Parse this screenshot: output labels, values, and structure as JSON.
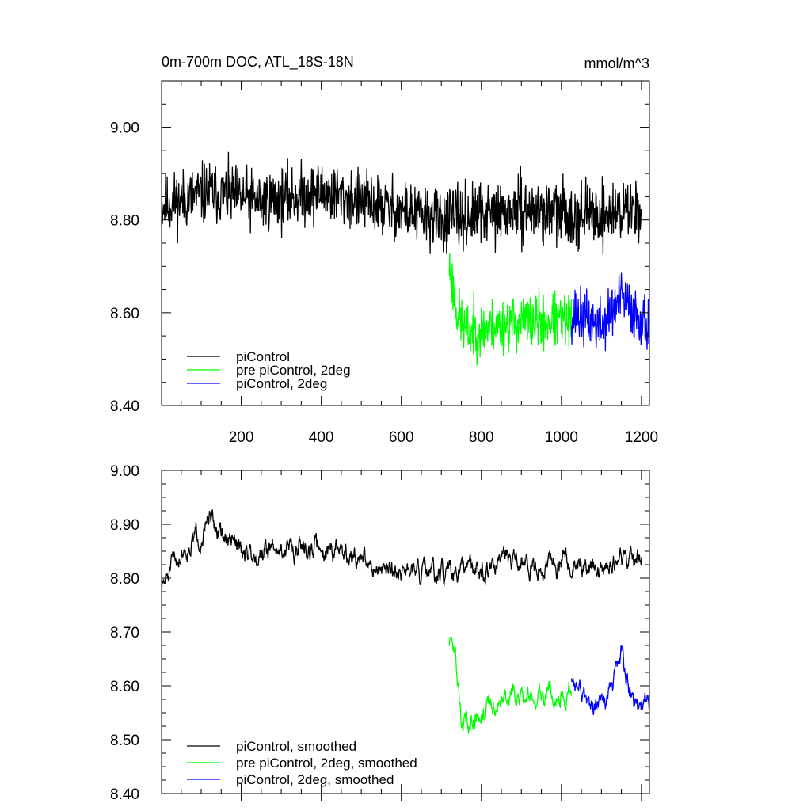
{
  "figure": {
    "title_left": "0m-700m DOC, ATL_18S-18N",
    "title_right": "mmol/m^3"
  },
  "chart_data": [
    {
      "type": "line",
      "title": "0m-700m DOC, ATL_18S-18N",
      "units": "mmol/m^3",
      "xlim": [
        1,
        1220
      ],
      "ylim": [
        8.4,
        9.1
      ],
      "xticks": [
        200,
        400,
        600,
        800,
        1000,
        1200
      ],
      "xtick_labels": [
        "200",
        "400",
        "600",
        "800",
        "1000",
        "1200"
      ],
      "yticks": [
        8.4,
        8.6,
        8.8,
        9.0
      ],
      "ytick_labels": [
        "8.40",
        "8.60",
        "8.80",
        "9.00"
      ],
      "legend_position": "bottom-left",
      "series": [
        {
          "name": "piControl",
          "color": "#000000",
          "x_start": 1,
          "x_end": 1200,
          "seed": 11,
          "mean_anchors": [
            [
              1,
              8.83
            ],
            [
              120,
              8.86
            ],
            [
              250,
              8.84
            ],
            [
              400,
              8.86
            ],
            [
              550,
              8.83
            ],
            [
              700,
              8.8
            ],
            [
              900,
              8.82
            ],
            [
              1100,
              8.81
            ],
            [
              1200,
              8.83
            ]
          ],
          "noise": 0.055,
          "approx_min": 8.64,
          "approx_max": 9.04
        },
        {
          "name": "pre piControl, 2deg",
          "color": "#00ff00",
          "x_start": 720,
          "x_end": 1025,
          "seed": 23,
          "mean_anchors": [
            [
              720,
              8.7
            ],
            [
              740,
              8.6
            ],
            [
              760,
              8.56
            ],
            [
              900,
              8.58
            ],
            [
              1025,
              8.58
            ]
          ],
          "noise": 0.05,
          "approx_min": 8.43,
          "approx_max": 8.76
        },
        {
          "name": "piControl, 2deg",
          "color": "#0000ff",
          "x_start": 1025,
          "x_end": 1220,
          "seed": 37,
          "mean_anchors": [
            [
              1025,
              8.6
            ],
            [
              1100,
              8.57
            ],
            [
              1150,
              8.63
            ],
            [
              1220,
              8.57
            ]
          ],
          "noise": 0.05,
          "approx_min": 8.43,
          "approx_max": 8.76
        }
      ]
    },
    {
      "type": "line",
      "xlim": [
        1,
        1220
      ],
      "ylim": [
        8.4,
        9.0
      ],
      "xticks": [
        200,
        400,
        600,
        800,
        1000,
        1200
      ],
      "yticks": [
        8.4,
        8.5,
        8.6,
        8.7,
        8.8,
        8.9,
        9.0
      ],
      "ytick_labels": [
        "8.40",
        "8.50",
        "8.60",
        "8.70",
        "8.80",
        "8.90",
        "9.00"
      ],
      "legend_position": "bottom-left",
      "series": [
        {
          "name": "piControl, smoothed",
          "color": "#000000",
          "x_start": 1,
          "x_end": 1200,
          "seed": 51,
          "mean_anchors": [
            [
              1,
              8.78
            ],
            [
              50,
              8.85
            ],
            [
              120,
              8.9
            ],
            [
              200,
              8.85
            ],
            [
              400,
              8.86
            ],
            [
              500,
              8.83
            ],
            [
              700,
              8.8
            ],
            [
              900,
              8.83
            ],
            [
              1100,
              8.82
            ],
            [
              1200,
              8.84
            ]
          ],
          "noise": 0.022,
          "approx_min": 8.72,
          "approx_max": 8.96
        },
        {
          "name": "pre piControl, 2deg, smoothed",
          "color": "#00ff00",
          "x_start": 720,
          "x_end": 1025,
          "seed": 63,
          "mean_anchors": [
            [
              720,
              8.68
            ],
            [
              735,
              8.66
            ],
            [
              750,
              8.53
            ],
            [
              800,
              8.56
            ],
            [
              900,
              8.58
            ],
            [
              1025,
              8.59
            ]
          ],
          "noise": 0.022,
          "approx_min": 8.48,
          "approx_max": 8.69
        },
        {
          "name": "piControl, 2deg, smoothed",
          "color": "#0000ff",
          "x_start": 1025,
          "x_end": 1220,
          "seed": 77,
          "mean_anchors": [
            [
              1025,
              8.62
            ],
            [
              1080,
              8.55
            ],
            [
              1120,
              8.58
            ],
            [
              1150,
              8.66
            ],
            [
              1175,
              8.57
            ],
            [
              1220,
              8.57
            ]
          ],
          "noise": 0.022,
          "approx_min": 8.49,
          "approx_max": 8.7
        }
      ]
    }
  ]
}
